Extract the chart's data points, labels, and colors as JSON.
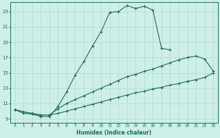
{
  "bg_color": "#ceeee8",
  "line_color": "#1a6b5e",
  "grid_color": "#b0d8d2",
  "xlabel": "Humidex (Indice chaleur)",
  "xlim": [
    -0.5,
    23.5
  ],
  "ylim": [
    8.5,
    24.2
  ],
  "yticks": [
    9,
    11,
    13,
    15,
    17,
    19,
    21,
    23
  ],
  "xticks": [
    0,
    1,
    2,
    3,
    4,
    5,
    6,
    7,
    8,
    9,
    10,
    11,
    12,
    13,
    14,
    15,
    16,
    17,
    18,
    19,
    20,
    21,
    22,
    23
  ],
  "curve1_x": [
    0,
    1,
    2,
    3,
    4,
    5,
    6,
    7,
    8,
    9,
    10,
    11,
    12,
    13,
    14,
    15,
    16,
    17,
    18
  ],
  "curve1_y": [
    10.2,
    9.7,
    9.6,
    9.3,
    9.3,
    10.6,
    12.5,
    14.7,
    16.5,
    18.5,
    20.4,
    22.9,
    23.0,
    23.8,
    23.4,
    23.7,
    23.2,
    18.2,
    18.0
  ],
  "curve2_x": [
    0,
    1,
    2,
    3,
    4,
    5,
    6,
    7,
    8,
    9,
    10,
    11,
    12,
    13,
    14,
    15,
    16,
    17,
    18,
    19,
    20,
    21,
    22,
    23
  ],
  "curve2_y": [
    10.2,
    9.9,
    9.7,
    9.5,
    9.5,
    10.3,
    11.0,
    11.5,
    12.0,
    12.5,
    13.0,
    13.5,
    14.0,
    14.5,
    14.8,
    15.2,
    15.5,
    15.9,
    16.3,
    16.7,
    17.0,
    17.2,
    16.8,
    15.2
  ],
  "curve3_x": [
    0,
    1,
    2,
    3,
    4,
    5,
    6,
    7,
    8,
    9,
    10,
    11,
    12,
    13,
    14,
    15,
    16,
    17,
    18,
    19,
    20,
    21,
    22,
    23
  ],
  "curve3_y": [
    10.2,
    9.9,
    9.7,
    9.5,
    9.5,
    9.7,
    10.0,
    10.3,
    10.6,
    10.9,
    11.2,
    11.5,
    11.8,
    12.1,
    12.4,
    12.6,
    12.9,
    13.1,
    13.4,
    13.6,
    13.9,
    14.1,
    14.4,
    15.0
  ]
}
